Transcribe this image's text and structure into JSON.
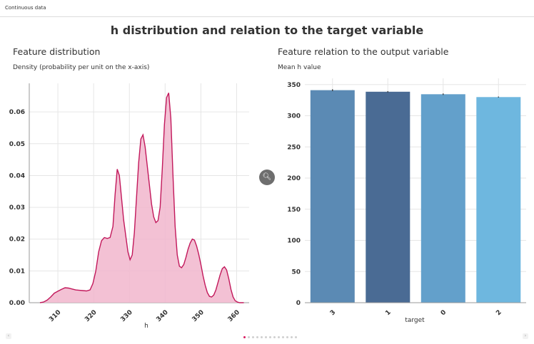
{
  "window": {
    "title": "Continuous data"
  },
  "main_title": "h distribution and relation to the target variable",
  "left_panel": {
    "title": "Feature distribution",
    "caption": "Density (probability per unit on the x-axis)"
  },
  "right_panel": {
    "title": "Feature relation to the output variable",
    "caption": "Mean h value"
  },
  "controls": {
    "zoom_icon": "magnifier-icon",
    "prev_icon": "left-chevron-icon",
    "next_icon": "right-chevron-icon",
    "pager_total": 13,
    "pager_active": 0
  },
  "chart_data": [
    {
      "type": "area",
      "title": "Feature distribution",
      "xlabel": "h",
      "ylabel": "Density (probability per unit on the x-axis)",
      "xlim": [
        302,
        363.5
      ],
      "ylim": [
        0,
        0.069
      ],
      "xticks": [
        310,
        320,
        330,
        340,
        350,
        360
      ],
      "yticks": [
        0.0,
        0.01,
        0.02,
        0.03,
        0.04,
        0.05,
        0.06
      ],
      "ytick_labels": [
        "0.00",
        "0.01",
        "0.02",
        "0.03",
        "0.04",
        "0.05",
        "0.06"
      ],
      "color": "#c2185b",
      "fill": "#f1b6cd",
      "grid": true,
      "x": [
        305,
        306,
        307,
        308,
        309,
        310,
        311,
        312,
        313,
        314,
        315,
        316,
        317,
        318,
        319,
        319.8,
        320.6,
        321.4,
        322.2,
        323,
        323.8,
        324.6,
        325.4,
        326,
        326.6,
        327.2,
        327.8,
        328.4,
        329,
        329.6,
        330.2,
        330.8,
        331.4,
        332,
        332.6,
        333.2,
        333.8,
        334.4,
        335,
        335.6,
        336.2,
        336.8,
        337.4,
        338,
        338.6,
        339.2,
        339.8,
        340.4,
        341,
        341.6,
        342.2,
        342.8,
        343.4,
        344,
        344.6,
        345.2,
        345.8,
        346.4,
        347,
        347.6,
        348.2,
        348.8,
        349.4,
        350,
        350.6,
        351.2,
        351.8,
        352.4,
        353,
        353.6,
        354.2,
        354.8,
        355.4,
        356,
        356.6,
        357.2,
        357.8,
        358.4,
        359,
        359.6,
        360.2,
        360.8,
        361.4,
        362
      ],
      "y": [
        0.0,
        0.0002,
        0.0008,
        0.0018,
        0.003,
        0.0036,
        0.0042,
        0.0047,
        0.0046,
        0.0043,
        0.004,
        0.0039,
        0.0038,
        0.0037,
        0.004,
        0.006,
        0.01,
        0.016,
        0.0195,
        0.0205,
        0.0202,
        0.0205,
        0.024,
        0.034,
        0.042,
        0.04,
        0.033,
        0.026,
        0.021,
        0.016,
        0.0135,
        0.015,
        0.022,
        0.033,
        0.044,
        0.0515,
        0.0528,
        0.049,
        0.043,
        0.037,
        0.031,
        0.027,
        0.0252,
        0.0258,
        0.03,
        0.042,
        0.056,
        0.0645,
        0.066,
        0.058,
        0.04,
        0.024,
        0.015,
        0.0115,
        0.011,
        0.012,
        0.0142,
        0.0168,
        0.0188,
        0.02,
        0.0197,
        0.0178,
        0.0152,
        0.012,
        0.0085,
        0.0055,
        0.0032,
        0.002,
        0.0018,
        0.0024,
        0.004,
        0.0064,
        0.0088,
        0.0107,
        0.0113,
        0.0103,
        0.0075,
        0.0042,
        0.0018,
        0.0006,
        0.0002,
        0.0,
        0.0,
        0.0
      ]
    },
    {
      "type": "bar",
      "title": "Feature relation to the output variable",
      "xlabel": "target",
      "ylabel": "Mean h value",
      "categories": [
        "3",
        "1",
        "0",
        "2"
      ],
      "values": [
        341,
        338.5,
        334.5,
        330
      ],
      "errors": [
        1.5,
        1.0,
        1.2,
        0.8
      ],
      "colors": [
        "#5b8ab4",
        "#4a6b94",
        "#63a0cb",
        "#6eb7df"
      ],
      "ylim": [
        0,
        360
      ],
      "yticks": [
        0,
        50,
        100,
        150,
        200,
        250,
        300,
        350
      ],
      "grid": true
    }
  ]
}
